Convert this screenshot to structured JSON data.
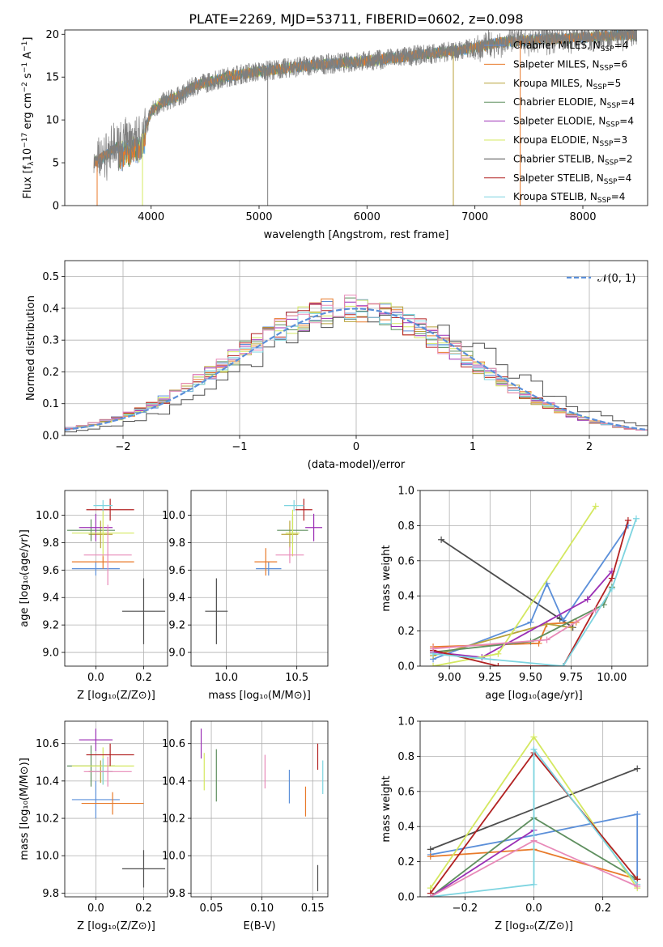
{
  "title": "PLATE=2269, MJD=53711, FIBERID=0602, z=0.098",
  "palette": {
    "chabrier_miles": "#5b8fd9",
    "salpeter_miles": "#e87a2a",
    "kroupa_miles": "#b8a23a",
    "chabrier_elodie": "#5f8f5f",
    "salpeter_elodie": "#9b2fb5",
    "kroupa_elodie": "#d4e860",
    "chabrier_stelib": "#4d4d4d",
    "salpeter_stelib": "#b22222",
    "kroupa_stelib": "#7dd4e0",
    "pink": "#e889b8",
    "data": "#7f7f7f"
  },
  "chart_data": [
    {
      "id": "spectrum",
      "type": "line",
      "xlabel": "wavelength [Angstrom, rest frame]",
      "ylabel_parts": [
        "Flux [f",
        "λ",
        "10",
        "−17",
        " erg cm",
        "−2",
        " s",
        "−1",
        " A",
        "−1",
        "]"
      ],
      "xlim": [
        3200,
        8600
      ],
      "ylim": [
        0,
        20.5
      ],
      "xticks": [
        "4000",
        "5000",
        "6000",
        "7000",
        "8000"
      ],
      "xtick_values": [
        4000,
        5000,
        6000,
        7000,
        8000
      ],
      "yticks": [
        "0",
        "5",
        "10",
        "15",
        "20"
      ],
      "ytick_values": [
        0,
        5,
        10,
        15,
        20
      ],
      "grid": false,
      "legend_position": "top-right",
      "continuum": {
        "x": [
          3470,
          3600,
          3700,
          3800,
          3900,
          3950,
          4000,
          4100,
          4200,
          4300,
          4400,
          4500,
          4700,
          4900,
          5100,
          5300,
          5500,
          5700,
          5900,
          6100,
          6300,
          6500,
          6700,
          6800,
          6900,
          7000,
          7100,
          7200,
          7300,
          7400,
          7500,
          7600,
          7800,
          8000,
          8200,
          8400
        ],
        "y": [
          5,
          6,
          7,
          7.5,
          8,
          9,
          11,
          12,
          12.5,
          13,
          14,
          14.3,
          15.0,
          15.5,
          15.8,
          16.1,
          16.4,
          16.6,
          16.8,
          17.0,
          17.3,
          17.6,
          17.9,
          18.0,
          18.2,
          18.4,
          18.7,
          19.0,
          19.1,
          19.2,
          19.3,
          19.4,
          19.5,
          19.6,
          19.8,
          19.9
        ]
      },
      "legend": [
        {
          "sub": "Chabrier MILES, N",
          "n": "4",
          "color_key": "chabrier_miles"
        },
        {
          "sub": "Salpeter MILES, N",
          "n": "6",
          "color_key": "salpeter_miles"
        },
        {
          "sub": "Kroupa MILES, N",
          "n": "5",
          "color_key": "kroupa_miles"
        },
        {
          "sub": "Chabrier ELODIE, N",
          "n": "4",
          "color_key": "chabrier_elodie"
        },
        {
          "sub": "Salpeter ELODIE, N",
          "n": "4",
          "color_key": "salpeter_elodie"
        },
        {
          "sub": "Kroupa ELODIE, N",
          "n": "3",
          "color_key": "kroupa_elodie"
        },
        {
          "sub": "Chabrier STELIB, N",
          "n": "2",
          "color_key": "chabrier_stelib"
        },
        {
          "sub": "Salpeter STELIB, N",
          "n": "4",
          "color_key": "salpeter_stelib"
        },
        {
          "sub": "Kroupa STELIB, N",
          "n": "4",
          "color_key": "kroupa_stelib"
        }
      ],
      "legend_subscript": "SSP"
    },
    {
      "id": "residuals",
      "type": "line",
      "xlabel": "(data-model)/error",
      "ylabel": "Normed distribution",
      "xlim": [
        -2.5,
        2.5
      ],
      "ylim": [
        0,
        0.55
      ],
      "xticks": [
        "−2",
        "−1",
        "0",
        "1",
        "2"
      ],
      "xtick_values": [
        -2,
        -1,
        0,
        1,
        2
      ],
      "yticks": [
        "0.0",
        "0.1",
        "0.2",
        "0.3",
        "0.4",
        "0.5"
      ],
      "ytick_values": [
        0,
        0.1,
        0.2,
        0.3,
        0.4,
        0.5
      ],
      "grid": true,
      "legend": "𝒩(0, 1)",
      "legend_position": "top-right",
      "bin_width": 0.1
    },
    {
      "id": "age-vs-Z",
      "type": "scatter",
      "xlabel": "Z [log₁₀(Z/Z⊙)]",
      "ylabel": "age  [log₁₀(age/yr)]",
      "xlim": [
        -0.13,
        0.3
      ],
      "ylim": [
        8.9,
        10.18
      ],
      "xticks": [
        "0.0",
        "0.2"
      ],
      "xtick_values": [
        0,
        0.2
      ],
      "yticks": [
        "9.0",
        "9.2",
        "9.4",
        "9.6",
        "9.8",
        "10.0"
      ],
      "ytick_values": [
        9.0,
        9.2,
        9.4,
        9.6,
        9.8,
        10.0
      ],
      "grid": true,
      "points": [
        {
          "c": "chabrier_miles",
          "x": 0.0,
          "xe": 0.1,
          "y": 9.61,
          "ye": 0.05
        },
        {
          "c": "salpeter_miles",
          "x": 0.03,
          "xe": 0.13,
          "y": 9.66,
          "ye": 0.05
        },
        {
          "c": "kroupa_miles",
          "x": 0.02,
          "xe": 0.05,
          "y": 9.86,
          "ye": 0.1
        },
        {
          "c": "chabrier_elodie",
          "x": -0.02,
          "xe": 0.1,
          "y": 9.89,
          "ye": 0.08
        },
        {
          "c": "salpeter_elodie",
          "x": 0.0,
          "xe": 0.07,
          "y": 9.91,
          "ye": 0.1
        },
        {
          "c": "kroupa_elodie",
          "x": 0.03,
          "xe": 0.13,
          "y": 9.87,
          "ye": 0.17
        },
        {
          "c": "chabrier_stelib",
          "x": 0.2,
          "xe": 0.09,
          "y": 9.3,
          "ye": 0.24
        },
        {
          "c": "salpeter_stelib",
          "x": 0.06,
          "xe": 0.1,
          "y": 10.04,
          "ye": 0.08
        },
        {
          "c": "kroupa_stelib",
          "x": 0.03,
          "xe": 0.04,
          "y": 10.07,
          "ye": 0.04
        },
        {
          "c": "pink",
          "x": 0.05,
          "xe": 0.1,
          "y": 9.71,
          "ye": 0.22
        }
      ]
    },
    {
      "id": "age-vs-mass",
      "type": "scatter",
      "xlabel": "mass [log₁₀(M/M⊙)]",
      "xlim": [
        9.75,
        10.72
      ],
      "ylim": [
        8.9,
        10.18
      ],
      "xticks": [
        "10.0",
        "10.5"
      ],
      "xtick_values": [
        10.0,
        10.5
      ],
      "yticks": [
        "9.0",
        "9.2",
        "9.4",
        "9.6",
        "9.8",
        "10.0"
      ],
      "ytick_values": [
        9.0,
        9.2,
        9.4,
        9.6,
        9.8,
        10.0
      ],
      "grid": true,
      "points": [
        {
          "c": "chabrier_miles",
          "x": 10.3,
          "xe": 0.09,
          "y": 9.61,
          "ye": 0.05
        },
        {
          "c": "salpeter_miles",
          "x": 10.28,
          "xe": 0.08,
          "y": 9.66,
          "ye": 0.1
        },
        {
          "c": "kroupa_miles",
          "x": 10.45,
          "xe": 0.06,
          "y": 9.86,
          "ye": 0.1
        },
        {
          "c": "chabrier_elodie",
          "x": 10.47,
          "xe": 0.11,
          "y": 9.89,
          "ye": 0.1
        },
        {
          "c": "salpeter_elodie",
          "x": 10.62,
          "xe": 0.06,
          "y": 9.91,
          "ye": 0.1
        },
        {
          "c": "kroupa_elodie",
          "x": 10.47,
          "xe": 0.05,
          "y": 9.87,
          "ye": 0.17
        },
        {
          "c": "chabrier_stelib",
          "x": 9.93,
          "xe": 0.08,
          "y": 9.3,
          "ye": 0.24
        },
        {
          "c": "salpeter_stelib",
          "x": 10.55,
          "xe": 0.06,
          "y": 10.04,
          "ye": 0.08
        },
        {
          "c": "kroupa_stelib",
          "x": 10.48,
          "xe": 0.07,
          "y": 10.07,
          "ye": 0.04
        },
        {
          "c": "pink",
          "x": 10.45,
          "xe": 0.1,
          "y": 9.71,
          "ye": 0.06
        }
      ]
    },
    {
      "id": "weight-vs-age",
      "type": "line",
      "xlabel": "age  [log₁₀(age/yr)]",
      "ylabel": "mass weight",
      "xlim": [
        8.82,
        10.22
      ],
      "ylim": [
        0,
        1.0
      ],
      "xticks": [
        "9.00",
        "9.25",
        "9.50",
        "9.75",
        "10.00"
      ],
      "xtick_values": [
        9.0,
        9.25,
        9.5,
        9.75,
        10.0
      ],
      "yticks": [
        "0.0",
        "0.2",
        "0.4",
        "0.6",
        "0.8",
        "1.0"
      ],
      "ytick_values": [
        0,
        0.2,
        0.4,
        0.6,
        0.8,
        1.0
      ],
      "grid": true,
      "series": [
        {
          "c": "chabrier_stelib",
          "x": [
            8.95,
            9.68,
            9.76
          ],
          "y": [
            0.72,
            0.27,
            0.22
          ]
        },
        {
          "c": "chabrier_miles",
          "x": [
            8.9,
            9.5,
            9.6,
            9.7,
            10.1
          ],
          "y": [
            0.04,
            0.25,
            0.47,
            0.26,
            0.8
          ]
        },
        {
          "c": "salpeter_miles",
          "x": [
            8.9,
            9.55,
            9.6,
            9.78
          ],
          "y": [
            0.11,
            0.13,
            0.24,
            0.25
          ]
        },
        {
          "c": "kroupa_miles",
          "x": [
            8.9,
            9.6,
            9.75
          ],
          "y": [
            0.06,
            0.24,
            0.22
          ]
        },
        {
          "c": "chabrier_elodie",
          "x": [
            8.9,
            9.5,
            9.95,
            10.0
          ],
          "y": [
            0.08,
            0.14,
            0.35,
            0.45
          ]
        },
        {
          "c": "salpeter_elodie",
          "x": [
            8.9,
            9.2,
            9.85,
            10.0
          ],
          "y": [
            0.08,
            0.05,
            0.38,
            0.54
          ]
        },
        {
          "c": "kroupa_elodie",
          "x": [
            8.9,
            9.3,
            9.9
          ],
          "y": [
            0.0,
            0.07,
            0.91
          ]
        },
        {
          "c": "salpeter_stelib",
          "x": [
            8.9,
            9.3,
            9.7,
            10.0,
            10.1
          ],
          "y": [
            0.09,
            0.0,
            0.0,
            0.5,
            0.83
          ]
        },
        {
          "c": "kroupa_stelib",
          "x": [
            8.9,
            9.7,
            10.0,
            10.15
          ],
          "y": [
            0.07,
            0.0,
            0.44,
            0.84
          ]
        },
        {
          "c": "pink",
          "x": [
            8.9,
            9.6,
            9.9
          ],
          "y": [
            0.1,
            0.15,
            0.32
          ]
        }
      ]
    },
    {
      "id": "mass-vs-Z",
      "type": "scatter",
      "xlabel": "Z [log₁₀(Z/Z⊙)]",
      "ylabel": "mass [log₁₀(M/M⊙)]",
      "xlim": [
        -0.13,
        0.3
      ],
      "ylim": [
        9.78,
        10.72
      ],
      "xticks": [
        "0.0",
        "0.2"
      ],
      "xtick_values": [
        0,
        0.2
      ],
      "yticks": [
        "9.8",
        "10.0",
        "10.2",
        "10.4",
        "10.6"
      ],
      "ytick_values": [
        9.8,
        10.0,
        10.2,
        10.4,
        10.6
      ],
      "grid": true,
      "points": [
        {
          "c": "chabrier_miles",
          "x": 0.0,
          "xe": 0.1,
          "y": 10.3,
          "ye": 0.1
        },
        {
          "c": "salpeter_miles",
          "x": 0.07,
          "xe": 0.13,
          "y": 10.28,
          "ye": 0.06
        },
        {
          "c": "kroupa_miles",
          "x": 0.02,
          "xe": 0.05,
          "y": 10.45,
          "ye": 0.06
        },
        {
          "c": "chabrier_elodie",
          "x": -0.02,
          "xe": 0.1,
          "y": 10.48,
          "ye": 0.11
        },
        {
          "c": "salpeter_elodie",
          "x": 0.0,
          "xe": 0.07,
          "y": 10.62,
          "ye": 0.06
        },
        {
          "c": "kroupa_elodie",
          "x": 0.03,
          "xe": 0.13,
          "y": 10.48,
          "ye": 0.1
        },
        {
          "c": "chabrier_stelib",
          "x": 0.2,
          "xe": 0.09,
          "y": 9.93,
          "ye": 0.1
        },
        {
          "c": "salpeter_stelib",
          "x": 0.06,
          "xe": 0.1,
          "y": 10.54,
          "ye": 0.06
        },
        {
          "c": "kroupa_stelib",
          "x": 0.03,
          "xe": 0.04,
          "y": 10.45,
          "ye": 0.07
        },
        {
          "c": "pink",
          "x": 0.05,
          "xe": 0.1,
          "y": 10.45,
          "ye": 0.08
        }
      ]
    },
    {
      "id": "mass-vs-ebv",
      "type": "scatter",
      "xlabel": "E(B-V)",
      "xlim": [
        0.03,
        0.165
      ],
      "ylim": [
        9.78,
        10.72
      ],
      "xticks": [
        "0.05",
        "0.10",
        "0.15"
      ],
      "xtick_values": [
        0.05,
        0.1,
        0.15
      ],
      "yticks": [
        "9.8",
        "10.0",
        "10.2",
        "10.4",
        "10.6"
      ],
      "ytick_values": [
        9.8,
        10.0,
        10.2,
        10.4,
        10.6
      ],
      "grid": true,
      "points": [
        {
          "c": "salpeter_elodie",
          "x": 0.04,
          "xe": 0,
          "y": 10.6,
          "ye": 0.08
        },
        {
          "c": "kroupa_elodie",
          "x": 0.043,
          "xe": 0,
          "y": 10.45,
          "ye": 0.1
        },
        {
          "c": "chabrier_elodie",
          "x": 0.055,
          "xe": 0,
          "y": 10.43,
          "ye": 0.14
        },
        {
          "c": "pink",
          "x": 0.103,
          "xe": 0,
          "y": 10.45,
          "ye": 0.09
        },
        {
          "c": "chabrier_miles",
          "x": 0.127,
          "xe": 0,
          "y": 10.37,
          "ye": 0.09
        },
        {
          "c": "salpeter_miles",
          "x": 0.143,
          "xe": 0,
          "y": 10.29,
          "ye": 0.08
        },
        {
          "c": "salpeter_stelib",
          "x": 0.155,
          "xe": 0,
          "y": 10.53,
          "ye": 0.07
        },
        {
          "c": "kroupa_stelib",
          "x": 0.16,
          "xe": 0,
          "y": 10.42,
          "ye": 0.09
        },
        {
          "c": "chabrier_stelib",
          "x": 0.155,
          "xe": 0,
          "y": 9.88,
          "ye": 0.07
        }
      ]
    },
    {
      "id": "weight-vs-Z",
      "type": "line",
      "xlabel": "Z [log₁₀(Z/Z⊙)]",
      "ylabel": "mass weight",
      "xlim": [
        -0.33,
        0.33
      ],
      "ylim": [
        0,
        1.0
      ],
      "xticks": [
        "−0.2",
        "0.0",
        "0.2"
      ],
      "xtick_values": [
        -0.2,
        0.0,
        0.2
      ],
      "yticks": [
        "0.0",
        "0.2",
        "0.4",
        "0.6",
        "0.8",
        "1.0"
      ],
      "ytick_values": [
        0,
        0.2,
        0.4,
        0.6,
        0.8,
        1.0
      ],
      "grid": true,
      "series": [
        {
          "c": "chabrier_stelib",
          "x": [
            -0.3,
            0.3
          ],
          "y": [
            0.27,
            0.73
          ]
        },
        {
          "c": "chabrier_miles",
          "x": [
            -0.3,
            0.0,
            0.3,
            0.3
          ],
          "y": [
            0.24,
            0.35,
            0.47,
            0.1
          ]
        },
        {
          "c": "salpeter_miles",
          "x": [
            -0.3,
            0.0,
            0.3
          ],
          "y": [
            0.23,
            0.27,
            0.1
          ]
        },
        {
          "c": "chabrier_elodie",
          "x": [
            -0.3,
            0.0,
            0.3
          ],
          "y": [
            0.0,
            0.45,
            0.1
          ]
        },
        {
          "c": "salpeter_elodie",
          "x": [
            -0.3,
            0.0
          ],
          "y": [
            0.0,
            0.38
          ]
        },
        {
          "c": "kroupa_elodie",
          "x": [
            -0.3,
            0.0,
            0.3
          ],
          "y": [
            0.05,
            0.91,
            0.05
          ]
        },
        {
          "c": "salpeter_stelib",
          "x": [
            -0.3,
            0.0,
            0.3
          ],
          "y": [
            0.02,
            0.82,
            0.1
          ]
        },
        {
          "c": "kroupa_stelib",
          "x": [
            -0.3,
            0.0,
            0.0,
            0.3
          ],
          "y": [
            0.0,
            0.07,
            0.84,
            0.07
          ]
        },
        {
          "c": "pink",
          "x": [
            -0.3,
            0.0,
            0.3
          ],
          "y": [
            0.0,
            0.32,
            0.06
          ]
        }
      ]
    }
  ]
}
